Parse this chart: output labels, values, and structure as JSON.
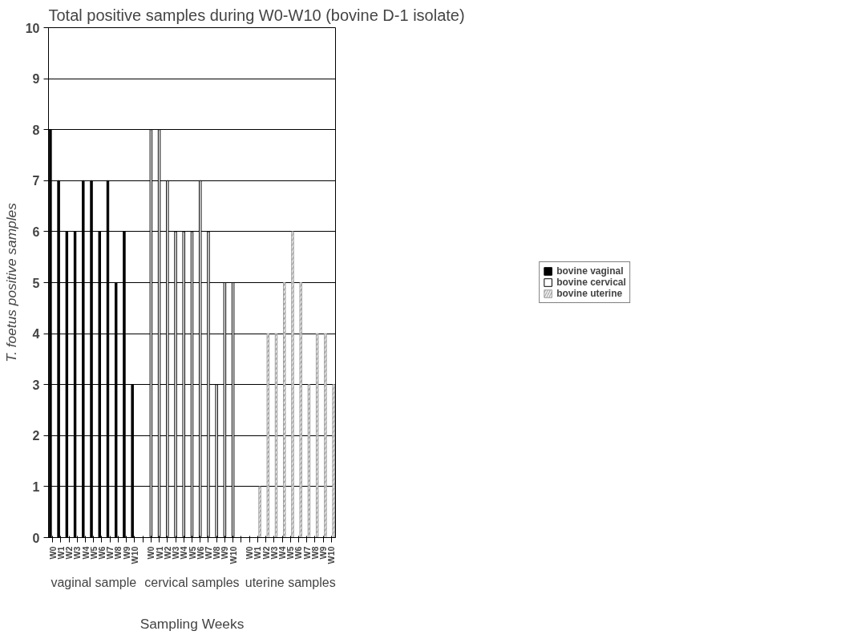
{
  "chart_data": {
    "type": "bar",
    "title": "Total positive samples during W0-W10 (bovine D-1 isolate)",
    "xlabel": "Sampling Weeks",
    "ylabel": "T. foetus positive samples",
    "categories": [
      "W0",
      "W1",
      "W2",
      "W3",
      "W4",
      "W5",
      "W6",
      "W7",
      "W8",
      "W9",
      "W10",
      null,
      "W0",
      "W1",
      "W2",
      "W3",
      "W4",
      "W5",
      "W6",
      "W7",
      "W8",
      "W9",
      "W10",
      null,
      "W0",
      "W1",
      "W2",
      "W3",
      "W4",
      "W5",
      "W6",
      "W7",
      "W8",
      "W9",
      "W10"
    ],
    "series": [
      {
        "name": "bovine vaginal",
        "color": "#000000",
        "values": [
          8,
          7,
          6,
          6,
          7,
          7,
          6,
          7,
          5,
          6,
          3,
          null,
          null,
          null,
          null,
          null,
          null,
          null,
          null,
          null,
          null,
          null,
          null,
          null,
          null,
          null,
          null,
          null,
          null,
          null,
          null,
          null,
          null,
          null,
          null
        ]
      },
      {
        "name": "bovine cervical",
        "color": "#ffffff",
        "values": [
          null,
          null,
          null,
          null,
          null,
          null,
          null,
          null,
          null,
          null,
          null,
          null,
          8,
          8,
          7,
          6,
          6,
          6,
          7,
          6,
          3,
          5,
          5,
          null,
          null,
          null,
          null,
          null,
          null,
          null,
          null,
          null,
          null,
          null,
          null
        ]
      },
      {
        "name": "bovine uterine",
        "color": "#a0a0a0",
        "values": [
          null,
          null,
          null,
          null,
          null,
          null,
          null,
          null,
          null,
          null,
          null,
          null,
          null,
          null,
          null,
          null,
          null,
          null,
          null,
          null,
          null,
          null,
          null,
          null,
          0,
          1,
          4,
          4,
          5,
          6,
          5,
          3,
          4,
          4,
          3
        ]
      }
    ],
    "annotations": [
      "vaginal sample",
      "cervical samples",
      "uterine samples"
    ],
    "ylim": [
      0,
      10
    ],
    "yticks": [
      0,
      1,
      2,
      3,
      4,
      5,
      6,
      7,
      8,
      9,
      10
    ],
    "grid": "y",
    "legend": "right"
  }
}
